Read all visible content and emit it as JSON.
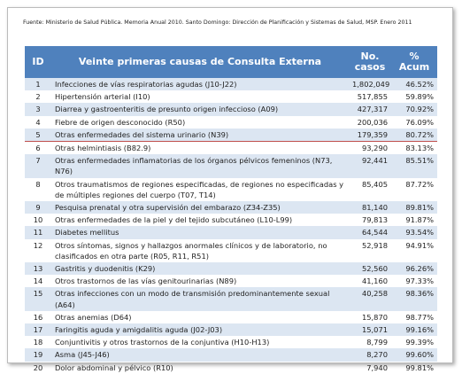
{
  "source": "Fuente: Ministerio de Salud Pública. Memoria Anual 2010. Santo Domingo: Dirección de Planificación y Sistemas de Salud, MSP. Enero 2011",
  "table": {
    "header": [
      "ID",
      "Veinte primeras causas de Consulta Externa",
      "No. casos",
      "% Acum"
    ],
    "rows": [
      [
        "1",
        "Infecciones de vías respiratorias agudas (J10-J22)",
        "1,802,049",
        "46.52%"
      ],
      [
        "2",
        "Hipertensión arterial (I10)",
        "517,855",
        "59.89%"
      ],
      [
        "3",
        "Diarrea y gastroenteritis de presunto origen infeccioso (A09)",
        "427,317",
        "70.92%"
      ],
      [
        "4",
        "Fiebre de origen desconocido (R50)",
        "200,036",
        "76.09%"
      ],
      [
        "5",
        "Otras enfermedades del sistema urinario (N39)",
        "179,359",
        "80.72%"
      ],
      [
        "6",
        "Otras helmintiasis (B82.9)",
        "93,290",
        "83.13%"
      ],
      [
        "7",
        "Otras enfermedades inflamatorias de los órganos pélvicos femeninos (N73, N76)",
        "92,441",
        "85.51%"
      ],
      [
        "8",
        "Otros traumatismos de regiones especificadas, de regiones no especificadas y de múltiples regiones del cuerpo (T07, T14)",
        "85,405",
        "87.72%"
      ],
      [
        "9",
        "Pesquisa prenatal y otra supervisión del embarazo (Z34-Z35)",
        "81,140",
        "89.81%"
      ],
      [
        "10",
        "Otras enfermedades de la piel y del tejido subcutáneo (L10-L99)",
        "79,813",
        "91.87%"
      ],
      [
        "11",
        "Diabetes mellitus",
        "64,544",
        "93.54%"
      ],
      [
        "12",
        "Otros síntomas, signos y hallazgos anormales clínicos y de laboratorio, no clasificados en otra parte (R05, R11, R51)",
        "52,918",
        "94.91%"
      ],
      [
        "13",
        "Gastritis y duodenitis (K29)",
        "52,560",
        "96.26%"
      ],
      [
        "14",
        "Otros trastornos de las vías genitourinarias (N89)",
        "41,160",
        "97.33%"
      ],
      [
        "15",
        "Otras infecciones con un modo de transmisión predominantemente sexual (A64)",
        "40,258",
        "98.36%"
      ],
      [
        "16",
        "Otras anemias (D64)",
        "15,870",
        "98.77%"
      ],
      [
        "17",
        "Faringitis aguda y amigdalitis aguda (J02-J03)",
        "15,071",
        "99.16%"
      ],
      [
        "18",
        "Conjuntivitis y otros trastornos de la conjuntiva (H10-H13)",
        "8,799",
        "99.39%"
      ],
      [
        "19",
        "Asma (J45-J46)",
        "8,270",
        "99.60%"
      ],
      [
        "20",
        "Dolor abdominal y pélvico (R10)",
        "7,940",
        "99.81%"
      ]
    ]
  }
}
